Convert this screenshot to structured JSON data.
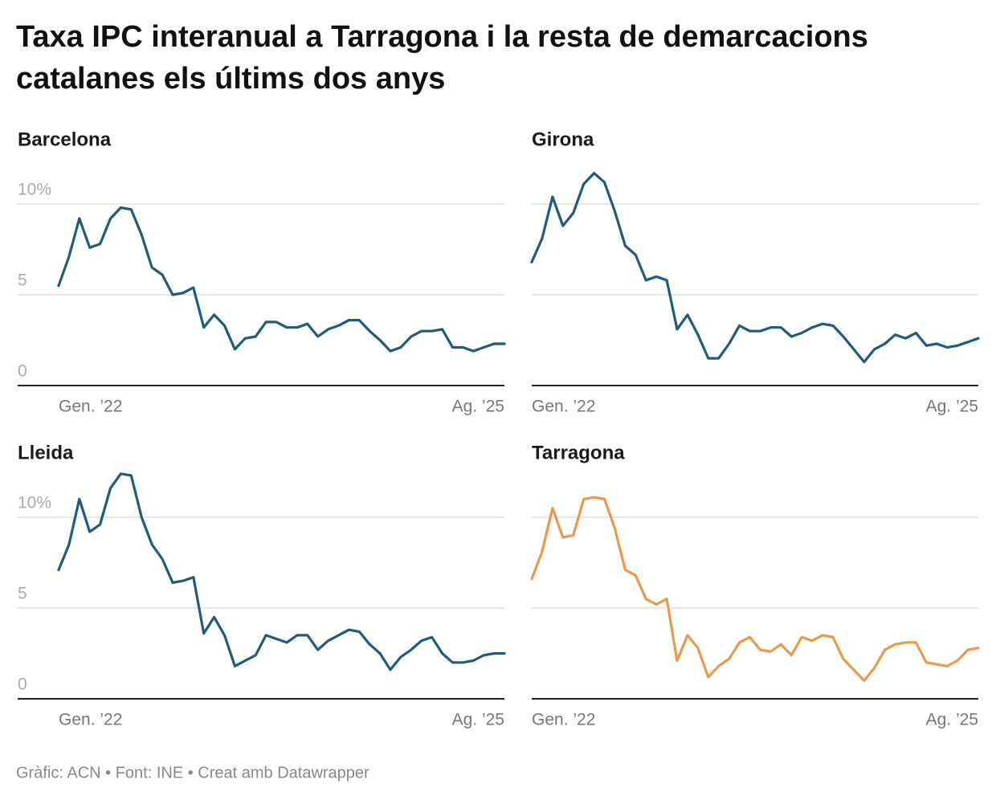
{
  "title": "Taxa IPC interanual a Tarragona i la resta de demarcacions catalanes els últims dos anys",
  "footer": "Gràfic: ACN • Font: INE • Creat amb Datawrapper",
  "chart_data": [
    {
      "type": "line",
      "title": "Barcelona",
      "categories": [
        "Gen. ’22",
        null,
        null,
        null,
        null,
        null,
        null,
        null,
        null,
        null,
        null,
        null,
        null,
        null,
        null,
        null,
        null,
        null,
        null,
        null,
        null,
        null,
        null,
        null,
        null,
        null,
        null,
        null,
        null,
        null,
        null,
        null,
        null,
        null,
        null,
        null,
        null,
        null,
        null,
        null,
        null,
        null,
        null,
        "Ag. ’25"
      ],
      "series": [
        {
          "name": "Barcelona",
          "color": "#1f5c79",
          "values": [
            5.5,
            7.1,
            9.2,
            7.6,
            7.8,
            9.2,
            9.8,
            9.7,
            8.3,
            6.5,
            6.1,
            5.0,
            5.1,
            5.4,
            3.2,
            3.9,
            3.3,
            2.0,
            2.6,
            2.7,
            3.5,
            3.5,
            3.2,
            3.2,
            3.4,
            2.7,
            3.1,
            3.3,
            3.6,
            3.6,
            3.0,
            2.5,
            1.9,
            2.1,
            2.7,
            3.0,
            3.0,
            3.1,
            2.1,
            2.1,
            1.9,
            2.1,
            2.3,
            2.3
          ]
        }
      ],
      "ylim": [
        0,
        12.5
      ],
      "yticks": [
        0,
        5,
        {
          "value": 10,
          "label": "10%"
        }
      ],
      "show_ytick_labels": true,
      "grid": true
    },
    {
      "type": "line",
      "title": "Girona",
      "categories": [
        "Gen. ’22",
        null,
        null,
        null,
        null,
        null,
        null,
        null,
        null,
        null,
        null,
        null,
        null,
        null,
        null,
        null,
        null,
        null,
        null,
        null,
        null,
        null,
        null,
        null,
        null,
        null,
        null,
        null,
        null,
        null,
        null,
        null,
        null,
        null,
        null,
        null,
        null,
        null,
        null,
        null,
        null,
        null,
        null,
        "Ag. ’25"
      ],
      "series": [
        {
          "name": "Girona",
          "color": "#1f5c79",
          "values": [
            6.8,
            8.1,
            10.4,
            8.8,
            9.5,
            11.1,
            11.7,
            11.2,
            9.6,
            7.7,
            7.2,
            5.8,
            6.0,
            5.8,
            3.1,
            3.9,
            2.8,
            1.5,
            1.5,
            2.3,
            3.3,
            3.0,
            3.0,
            3.2,
            3.2,
            2.7,
            2.9,
            3.2,
            3.4,
            3.3,
            2.7,
            2.0,
            1.3,
            2.0,
            2.3,
            2.8,
            2.6,
            2.9,
            2.2,
            2.3,
            2.1,
            2.2,
            2.4,
            2.6
          ]
        }
      ],
      "ylim": [
        0,
        12.5
      ],
      "yticks": [
        0,
        5,
        10
      ],
      "show_ytick_labels": false,
      "grid": true
    },
    {
      "type": "line",
      "title": "Lleida",
      "categories": [
        "Gen. ’22",
        null,
        null,
        null,
        null,
        null,
        null,
        null,
        null,
        null,
        null,
        null,
        null,
        null,
        null,
        null,
        null,
        null,
        null,
        null,
        null,
        null,
        null,
        null,
        null,
        null,
        null,
        null,
        null,
        null,
        null,
        null,
        null,
        null,
        null,
        null,
        null,
        null,
        null,
        null,
        null,
        null,
        null,
        "Ag. ’25"
      ],
      "series": [
        {
          "name": "Lleida",
          "color": "#1f5c79",
          "values": [
            7.1,
            8.5,
            11.0,
            9.2,
            9.6,
            11.6,
            12.4,
            12.3,
            10.0,
            8.5,
            7.7,
            6.4,
            6.5,
            6.7,
            3.6,
            4.5,
            3.5,
            1.8,
            2.1,
            2.4,
            3.5,
            3.3,
            3.1,
            3.5,
            3.5,
            2.7,
            3.2,
            3.5,
            3.8,
            3.7,
            3.0,
            2.5,
            1.6,
            2.3,
            2.7,
            3.2,
            3.4,
            2.5,
            2.0,
            2.0,
            2.1,
            2.4,
            2.5,
            2.5
          ]
        }
      ],
      "ylim": [
        0,
        12.5
      ],
      "yticks": [
        0,
        5,
        {
          "value": 10,
          "label": "10%"
        }
      ],
      "show_ytick_labels": true,
      "grid": true
    },
    {
      "type": "line",
      "title": "Tarragona",
      "categories": [
        "Gen. ’22",
        null,
        null,
        null,
        null,
        null,
        null,
        null,
        null,
        null,
        null,
        null,
        null,
        null,
        null,
        null,
        null,
        null,
        null,
        null,
        null,
        null,
        null,
        null,
        null,
        null,
        null,
        null,
        null,
        null,
        null,
        null,
        null,
        null,
        null,
        null,
        null,
        null,
        null,
        null,
        null,
        null,
        null,
        "Ag. ’25"
      ],
      "series": [
        {
          "name": "Tarragona",
          "color": "#e8994a",
          "values": [
            6.6,
            8.1,
            10.5,
            8.9,
            9.0,
            11.0,
            11.1,
            11.0,
            9.4,
            7.1,
            6.8,
            5.5,
            5.2,
            5.5,
            2.1,
            3.5,
            2.8,
            1.2,
            1.8,
            2.2,
            3.1,
            3.4,
            2.7,
            2.6,
            3.0,
            2.4,
            3.4,
            3.2,
            3.5,
            3.4,
            2.2,
            1.6,
            1.0,
            1.7,
            2.7,
            3.0,
            3.1,
            3.1,
            2.0,
            1.9,
            1.8,
            2.1,
            2.7,
            2.8
          ]
        }
      ],
      "ylim": [
        0,
        12.5
      ],
      "yticks": [
        0,
        5,
        10
      ],
      "show_ytick_labels": false,
      "grid": true
    }
  ]
}
